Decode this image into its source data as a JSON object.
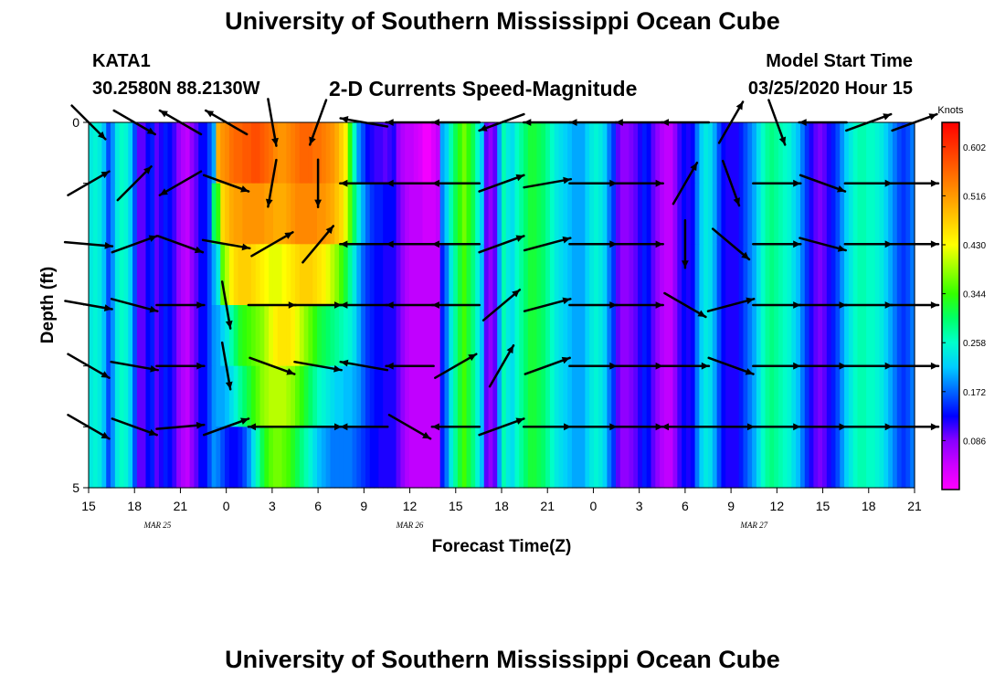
{
  "page": {
    "title": "University of Southern Mississippi Ocean Cube",
    "footer_title": "University of Southern Mississippi Ocean Cube",
    "station": "KATA1",
    "coords": "30.2580N 88.2130W",
    "chart_title": "2-D Currents Speed-Magnitude",
    "model_label": "Model Start Time",
    "model_time": "03/25/2020 Hour 15"
  },
  "chart_data": {
    "type": "heatmap",
    "title": "2-D Currents Speed-Magnitude",
    "xlabel": "Forecast Time(Z)",
    "ylabel": "Depth (ft)",
    "x_ticks": [
      "15",
      "18",
      "21",
      "0",
      "3",
      "6",
      "9",
      "12",
      "15",
      "18",
      "21",
      "0",
      "3",
      "6",
      "9",
      "12",
      "15",
      "18",
      "21"
    ],
    "date_labels": [
      {
        "text": "MAR  25",
        "tick_index": 1.5
      },
      {
        "text": "MAR  26",
        "tick_index": 7
      },
      {
        "text": "MAR  27",
        "tick_index": 14.5
      }
    ],
    "y_ticks": [
      "0",
      "5"
    ],
    "y_range": [
      0,
      5
    ],
    "colorbar": {
      "unit": "Knots",
      "range": [
        0.0,
        0.645
      ],
      "ticks": [
        "0.086",
        "0.172",
        "0.258",
        "0.344",
        "0.430",
        "0.516",
        "0.602"
      ],
      "colors": [
        "#ff00ff",
        "#cc00ff",
        "#8800ff",
        "#0000ff",
        "#0066ff",
        "#00ccff",
        "#00ffcc",
        "#00ff66",
        "#33ff00",
        "#99ff00",
        "#ffff00",
        "#ffcc00",
        "#ff9900",
        "#ff6600",
        "#ff3300",
        "#ff0000"
      ]
    },
    "hours_per_column": 1,
    "speed_knots": [
      [
        0.24,
        0.25,
        0.24,
        0.21,
        0.16,
        0.19,
        0.24,
        0.26,
        0.25,
        0.22,
        0.16,
        0.1,
        0.1,
        0.13,
        0.14,
        0.1,
        0.12,
        0.14,
        0.13,
        0.11,
        0.08,
        0.06,
        0.05,
        0.08,
        0.1,
        0.13,
        0.13,
        0.16,
        0.2,
        0.5,
        0.52,
        0.53,
        0.55,
        0.56,
        0.56,
        0.57,
        0.57,
        0.58,
        0.58,
        0.57,
        0.56,
        0.55,
        0.53,
        0.52,
        0.52,
        0.53,
        0.54,
        0.55,
        0.56,
        0.56,
        0.56,
        0.55,
        0.55,
        0.54,
        0.53,
        0.52,
        0.5,
        0.47,
        0.44,
        0.34,
        0.26,
        0.19,
        0.16,
        0.13,
        0.12,
        0.11,
        0.11,
        0.1,
        0.11,
        0.12,
        0.08,
        0.06,
        0.05,
        0.05,
        0.04,
        0.03,
        0.01,
        0.01,
        0.03,
        0.05,
        0.2,
        0.22,
        0.27,
        0.31,
        0.34,
        0.37,
        0.34,
        0.31,
        0.26,
        0.22,
        0.1,
        0.08,
        0.1,
        0.2,
        0.27,
        0.24,
        0.23,
        0.26,
        0.28,
        0.3,
        0.32,
        0.32,
        0.31,
        0.3,
        0.28,
        0.26,
        0.24,
        0.23,
        0.22,
        0.21,
        0.2,
        0.2,
        0.2,
        0.22,
        0.24,
        0.25,
        0.24,
        0.22,
        0.18,
        0.15,
        0.1,
        0.08,
        0.08,
        0.09,
        0.1,
        0.12,
        0.14,
        0.13,
        0.1,
        0.08,
        0.06,
        0.05,
        0.05,
        0.08,
        0.11,
        0.13,
        0.12,
        0.13,
        0.18,
        0.22,
        0.24,
        0.23,
        0.2,
        0.16,
        0.13,
        0.12,
        0.12,
        0.12,
        0.14,
        0.16,
        0.18,
        0.2,
        0.23,
        0.26,
        0.28,
        0.29,
        0.28,
        0.27,
        0.26,
        0.25,
        0.23,
        0.21,
        0.18,
        0.15,
        0.12,
        0.1,
        0.09,
        0.1,
        0.12,
        0.14,
        0.16,
        0.19,
        0.22,
        0.24,
        0.26,
        0.27,
        0.27,
        0.26,
        0.26,
        0.25,
        0.24,
        0.22,
        0.2,
        0.18,
        0.16,
        0.15,
        0.16,
        0.18
      ],
      [
        0.24,
        0.25,
        0.24,
        0.21,
        0.16,
        0.19,
        0.24,
        0.26,
        0.25,
        0.22,
        0.16,
        0.1,
        0.1,
        0.13,
        0.14,
        0.1,
        0.12,
        0.14,
        0.13,
        0.11,
        0.08,
        0.06,
        0.05,
        0.08,
        0.1,
        0.13,
        0.13,
        0.16,
        0.3,
        0.34,
        0.46,
        0.48,
        0.5,
        0.51,
        0.51,
        0.52,
        0.52,
        0.52,
        0.52,
        0.52,
        0.51,
        0.51,
        0.5,
        0.5,
        0.5,
        0.51,
        0.52,
        0.53,
        0.53,
        0.53,
        0.53,
        0.53,
        0.52,
        0.52,
        0.51,
        0.5,
        0.48,
        0.46,
        0.42,
        0.36,
        0.3,
        0.24,
        0.2,
        0.17,
        0.15,
        0.14,
        0.14,
        0.13,
        0.13,
        0.13,
        0.1,
        0.08,
        0.06,
        0.05,
        0.05,
        0.05,
        0.04,
        0.04,
        0.04,
        0.05,
        0.18,
        0.22,
        0.27,
        0.31,
        0.34,
        0.37,
        0.34,
        0.31,
        0.26,
        0.22,
        0.1,
        0.08,
        0.1,
        0.2,
        0.27,
        0.24,
        0.23,
        0.26,
        0.28,
        0.3,
        0.32,
        0.32,
        0.31,
        0.3,
        0.28,
        0.26,
        0.24,
        0.23,
        0.22,
        0.21,
        0.2,
        0.2,
        0.2,
        0.22,
        0.24,
        0.25,
        0.24,
        0.22,
        0.18,
        0.15,
        0.1,
        0.08,
        0.08,
        0.09,
        0.1,
        0.12,
        0.14,
        0.13,
        0.1,
        0.08,
        0.06,
        0.05,
        0.05,
        0.08,
        0.11,
        0.13,
        0.12,
        0.13,
        0.18,
        0.22,
        0.24,
        0.23,
        0.2,
        0.16,
        0.13,
        0.12,
        0.12,
        0.12,
        0.14,
        0.16,
        0.18,
        0.2,
        0.23,
        0.26,
        0.28,
        0.29,
        0.28,
        0.27,
        0.26,
        0.25,
        0.23,
        0.21,
        0.18,
        0.15,
        0.12,
        0.1,
        0.09,
        0.1,
        0.12,
        0.14,
        0.16,
        0.19,
        0.22,
        0.24,
        0.26,
        0.27,
        0.27,
        0.26,
        0.26,
        0.25,
        0.24,
        0.22,
        0.2,
        0.18,
        0.16,
        0.15,
        0.16,
        0.18
      ],
      [
        0.24,
        0.25,
        0.24,
        0.21,
        0.16,
        0.19,
        0.24,
        0.26,
        0.25,
        0.22,
        0.16,
        0.1,
        0.1,
        0.13,
        0.14,
        0.1,
        0.12,
        0.14,
        0.13,
        0.11,
        0.08,
        0.06,
        0.05,
        0.08,
        0.1,
        0.13,
        0.13,
        0.16,
        0.2,
        0.24,
        0.36,
        0.4,
        0.44,
        0.46,
        0.47,
        0.47,
        0.47,
        0.46,
        0.45,
        0.44,
        0.43,
        0.42,
        0.42,
        0.42,
        0.43,
        0.44,
        0.45,
        0.46,
        0.47,
        0.47,
        0.47,
        0.46,
        0.45,
        0.44,
        0.42,
        0.4,
        0.38,
        0.35,
        0.32,
        0.28,
        0.24,
        0.2,
        0.17,
        0.15,
        0.14,
        0.13,
        0.13,
        0.12,
        0.12,
        0.12,
        0.1,
        0.08,
        0.06,
        0.05,
        0.05,
        0.05,
        0.05,
        0.05,
        0.05,
        0.05,
        0.14,
        0.18,
        0.24,
        0.28,
        0.32,
        0.35,
        0.32,
        0.29,
        0.25,
        0.21,
        0.1,
        0.08,
        0.1,
        0.2,
        0.27,
        0.24,
        0.23,
        0.26,
        0.28,
        0.3,
        0.32,
        0.32,
        0.31,
        0.3,
        0.28,
        0.26,
        0.24,
        0.23,
        0.22,
        0.21,
        0.2,
        0.2,
        0.2,
        0.22,
        0.24,
        0.25,
        0.24,
        0.22,
        0.18,
        0.15,
        0.1,
        0.08,
        0.08,
        0.09,
        0.1,
        0.12,
        0.14,
        0.13,
        0.1,
        0.08,
        0.06,
        0.05,
        0.05,
        0.08,
        0.11,
        0.13,
        0.12,
        0.13,
        0.18,
        0.22,
        0.24,
        0.23,
        0.2,
        0.16,
        0.13,
        0.12,
        0.12,
        0.12,
        0.14,
        0.16,
        0.18,
        0.2,
        0.23,
        0.26,
        0.28,
        0.29,
        0.28,
        0.27,
        0.26,
        0.25,
        0.23,
        0.21,
        0.18,
        0.15,
        0.12,
        0.1,
        0.09,
        0.1,
        0.12,
        0.14,
        0.16,
        0.19,
        0.22,
        0.24,
        0.26,
        0.27,
        0.27,
        0.26,
        0.26,
        0.25,
        0.24,
        0.22,
        0.2,
        0.18,
        0.16,
        0.15,
        0.16,
        0.18
      ],
      [
        0.24,
        0.25,
        0.24,
        0.21,
        0.16,
        0.19,
        0.24,
        0.26,
        0.25,
        0.22,
        0.16,
        0.1,
        0.1,
        0.13,
        0.14,
        0.1,
        0.12,
        0.14,
        0.13,
        0.11,
        0.08,
        0.06,
        0.05,
        0.08,
        0.1,
        0.13,
        0.13,
        0.16,
        0.19,
        0.2,
        0.22,
        0.24,
        0.27,
        0.3,
        0.33,
        0.34,
        0.35,
        0.36,
        0.37,
        0.38,
        0.4,
        0.42,
        0.44,
        0.45,
        0.45,
        0.45,
        0.44,
        0.42,
        0.4,
        0.38,
        0.36,
        0.34,
        0.32,
        0.31,
        0.3,
        0.29,
        0.28,
        0.27,
        0.26,
        0.25,
        0.23,
        0.2,
        0.17,
        0.15,
        0.14,
        0.13,
        0.13,
        0.12,
        0.12,
        0.12,
        0.1,
        0.08,
        0.06,
        0.05,
        0.05,
        0.05,
        0.05,
        0.05,
        0.05,
        0.05,
        0.14,
        0.18,
        0.24,
        0.28,
        0.32,
        0.35,
        0.32,
        0.29,
        0.25,
        0.21,
        0.1,
        0.08,
        0.1,
        0.2,
        0.27,
        0.24,
        0.23,
        0.26,
        0.28,
        0.3,
        0.32,
        0.32,
        0.31,
        0.3,
        0.28,
        0.26,
        0.24,
        0.23,
        0.22,
        0.21,
        0.2,
        0.2,
        0.2,
        0.22,
        0.24,
        0.25,
        0.24,
        0.22,
        0.18,
        0.15,
        0.1,
        0.08,
        0.08,
        0.09,
        0.1,
        0.12,
        0.14,
        0.13,
        0.1,
        0.08,
        0.06,
        0.05,
        0.05,
        0.08,
        0.11,
        0.13,
        0.12,
        0.13,
        0.18,
        0.22,
        0.24,
        0.23,
        0.2,
        0.16,
        0.13,
        0.12,
        0.12,
        0.12,
        0.14,
        0.16,
        0.18,
        0.2,
        0.23,
        0.26,
        0.28,
        0.29,
        0.28,
        0.27,
        0.26,
        0.25,
        0.23,
        0.21,
        0.18,
        0.15,
        0.12,
        0.1,
        0.09,
        0.1,
        0.12,
        0.14,
        0.16,
        0.19,
        0.22,
        0.24,
        0.26,
        0.27,
        0.27,
        0.26,
        0.26,
        0.25,
        0.24,
        0.22,
        0.2,
        0.18,
        0.16,
        0.15,
        0.16,
        0.18
      ],
      [
        0.24,
        0.25,
        0.24,
        0.21,
        0.16,
        0.19,
        0.24,
        0.26,
        0.25,
        0.22,
        0.16,
        0.1,
        0.1,
        0.13,
        0.14,
        0.1,
        0.12,
        0.14,
        0.13,
        0.11,
        0.08,
        0.06,
        0.05,
        0.08,
        0.1,
        0.13,
        0.13,
        0.16,
        0.19,
        0.2,
        0.2,
        0.21,
        0.23,
        0.25,
        0.28,
        0.3,
        0.32,
        0.34,
        0.36,
        0.38,
        0.39,
        0.4,
        0.4,
        0.4,
        0.4,
        0.39,
        0.38,
        0.36,
        0.34,
        0.32,
        0.3,
        0.28,
        0.26,
        0.25,
        0.24,
        0.23,
        0.22,
        0.22,
        0.21,
        0.21,
        0.2,
        0.19,
        0.17,
        0.15,
        0.14,
        0.13,
        0.13,
        0.12,
        0.12,
        0.12,
        0.1,
        0.08,
        0.06,
        0.05,
        0.05,
        0.05,
        0.05,
        0.05,
        0.05,
        0.05,
        0.14,
        0.18,
        0.24,
        0.28,
        0.32,
        0.35,
        0.32,
        0.29,
        0.25,
        0.21,
        0.1,
        0.08,
        0.1,
        0.2,
        0.27,
        0.24,
        0.23,
        0.26,
        0.28,
        0.3,
        0.32,
        0.32,
        0.31,
        0.3,
        0.28,
        0.26,
        0.24,
        0.23,
        0.22,
        0.21,
        0.2,
        0.2,
        0.2,
        0.22,
        0.24,
        0.25,
        0.24,
        0.22,
        0.18,
        0.15,
        0.1,
        0.08,
        0.08,
        0.09,
        0.1,
        0.12,
        0.14,
        0.13,
        0.1,
        0.08,
        0.06,
        0.05,
        0.05,
        0.08,
        0.11,
        0.13,
        0.12,
        0.13,
        0.18,
        0.22,
        0.24,
        0.23,
        0.2,
        0.16,
        0.13,
        0.12,
        0.12,
        0.12,
        0.14,
        0.16,
        0.18,
        0.2,
        0.23,
        0.26,
        0.28,
        0.29,
        0.28,
        0.27,
        0.26,
        0.25,
        0.23,
        0.21,
        0.18,
        0.15,
        0.12,
        0.1,
        0.09,
        0.1,
        0.12,
        0.14,
        0.16,
        0.19,
        0.22,
        0.24,
        0.26,
        0.27,
        0.27,
        0.26,
        0.26,
        0.25,
        0.24,
        0.22,
        0.2,
        0.18,
        0.16,
        0.15,
        0.16,
        0.18
      ],
      [
        0.24,
        0.25,
        0.24,
        0.21,
        0.16,
        0.19,
        0.24,
        0.26,
        0.25,
        0.22,
        0.16,
        0.1,
        0.1,
        0.13,
        0.14,
        0.1,
        0.12,
        0.14,
        0.13,
        0.11,
        0.08,
        0.06,
        0.05,
        0.08,
        0.1,
        0.13,
        0.13,
        0.16,
        0.19,
        0.18,
        0.16,
        0.14,
        0.13,
        0.13,
        0.14,
        0.16,
        0.19,
        0.23,
        0.27,
        0.31,
        0.34,
        0.36,
        0.37,
        0.37,
        0.36,
        0.35,
        0.33,
        0.31,
        0.29,
        0.27,
        0.25,
        0.23,
        0.21,
        0.2,
        0.19,
        0.18,
        0.18,
        0.18,
        0.18,
        0.18,
        0.17,
        0.16,
        0.15,
        0.14,
        0.13,
        0.13,
        0.12,
        0.12,
        0.12,
        0.12,
        0.1,
        0.08,
        0.06,
        0.05,
        0.05,
        0.05,
        0.05,
        0.05,
        0.05,
        0.05,
        0.14,
        0.18,
        0.24,
        0.28,
        0.32,
        0.35,
        0.32,
        0.29,
        0.25,
        0.21,
        0.1,
        0.08,
        0.1,
        0.2,
        0.27,
        0.24,
        0.23,
        0.26,
        0.28,
        0.3,
        0.32,
        0.32,
        0.31,
        0.3,
        0.28,
        0.26,
        0.24,
        0.23,
        0.22,
        0.21,
        0.2,
        0.2,
        0.2,
        0.22,
        0.24,
        0.25,
        0.24,
        0.22,
        0.18,
        0.15,
        0.1,
        0.08,
        0.08,
        0.09,
        0.1,
        0.12,
        0.14,
        0.13,
        0.1,
        0.08,
        0.06,
        0.05,
        0.05,
        0.08,
        0.11,
        0.13,
        0.12,
        0.13,
        0.18,
        0.22,
        0.24,
        0.23,
        0.2,
        0.16,
        0.13,
        0.12,
        0.12,
        0.12,
        0.14,
        0.16,
        0.18,
        0.2,
        0.23,
        0.26,
        0.28,
        0.29,
        0.28,
        0.27,
        0.26,
        0.25,
        0.23,
        0.21,
        0.18,
        0.15,
        0.12,
        0.1,
        0.09,
        0.1,
        0.12,
        0.14,
        0.16,
        0.19,
        0.22,
        0.24,
        0.26,
        0.27,
        0.27,
        0.26,
        0.26,
        0.25,
        0.24,
        0.22,
        0.2,
        0.18,
        0.16,
        0.15,
        0.16,
        0.18
      ]
    ],
    "vectors": {
      "hours": [
        0,
        3,
        6,
        9,
        12,
        15,
        18,
        21,
        24,
        27,
        30,
        33,
        36,
        39,
        42,
        45,
        48,
        51,
        54
      ],
      "layers": [
        0,
        1,
        2,
        3,
        4,
        5
      ],
      "direction_deg": [
        [
          -45,
          -30,
          150,
          150,
          -80,
          -110,
          170,
          180,
          180,
          -160,
          180,
          180,
          180,
          180,
          60,
          -70,
          180,
          20,
          20
        ],
        [
          30,
          45,
          -150,
          -20,
          -100,
          -90,
          180,
          180,
          180,
          20,
          10,
          0,
          0,
          60,
          -70,
          0,
          -20,
          0,
          0
        ],
        [
          -5,
          20,
          -20,
          -10,
          30,
          50,
          180,
          180,
          180,
          20,
          15,
          0,
          0,
          -90,
          -40,
          0,
          -15,
          0,
          0
        ],
        [
          -10,
          -15,
          0,
          -80,
          0,
          0,
          180,
          180,
          180,
          40,
          15,
          0,
          0,
          -30,
          15,
          0,
          0,
          0,
          0
        ],
        [
          -30,
          -10,
          0,
          -80,
          -20,
          -10,
          170,
          180,
          30,
          60,
          20,
          0,
          0,
          0,
          -20,
          0,
          0,
          0,
          0
        ],
        [
          -30,
          -20,
          5,
          20,
          180,
          0,
          180,
          -30,
          180,
          20,
          0,
          0,
          0,
          180,
          0,
          0,
          0,
          0,
          0
        ]
      ]
    }
  }
}
